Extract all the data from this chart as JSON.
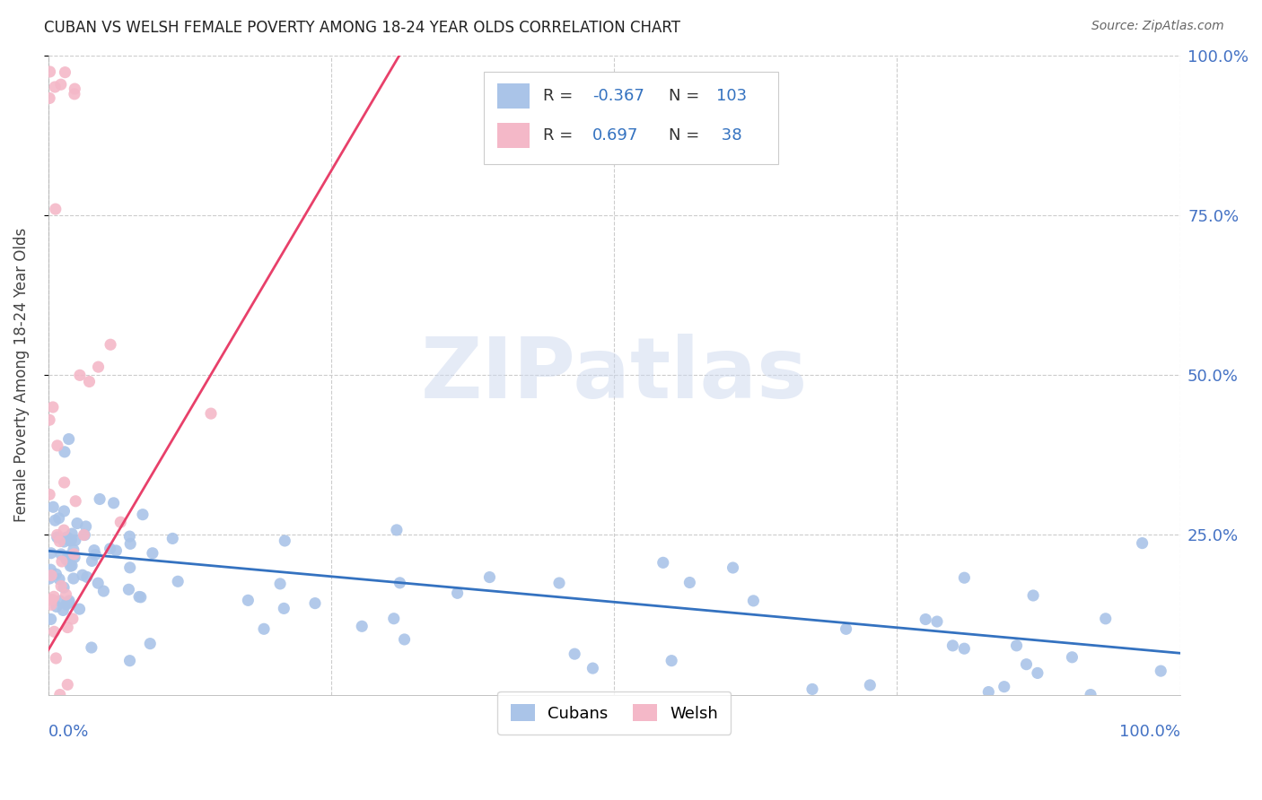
{
  "title": "CUBAN VS WELSH FEMALE POVERTY AMONG 18-24 YEAR OLDS CORRELATION CHART",
  "source": "Source: ZipAtlas.com",
  "ylabel": "Female Poverty Among 18-24 Year Olds",
  "background_color": "#ffffff",
  "cubans_color": "#aac4e8",
  "welsh_color": "#f4b8c8",
  "cubans_line_color": "#3472c0",
  "welsh_line_color": "#e8406a",
  "right_tick_color": "#4472c4",
  "cubans_R": -0.367,
  "cubans_N": 103,
  "welsh_R": 0.697,
  "welsh_N": 38,
  "legend_label_cubans": "Cubans",
  "legend_label_welsh": "Welsh",
  "watermark_text": "ZIPatlas",
  "xlim": [
    0.0,
    1.0
  ],
  "ylim": [
    0.0,
    1.0
  ],
  "ytick_positions": [
    0.25,
    0.5,
    0.75,
    1.0
  ],
  "ytick_labels": [
    "25.0%",
    "50.0%",
    "75.0%",
    "100.0%"
  ],
  "cuban_line_x0": 0.0,
  "cuban_line_y0": 0.225,
  "cuban_line_x1": 1.0,
  "cuban_line_y1": 0.065,
  "welsh_line_x0": 0.0,
  "welsh_line_y0": 0.07,
  "welsh_line_x1": 0.31,
  "welsh_line_y1": 1.0
}
